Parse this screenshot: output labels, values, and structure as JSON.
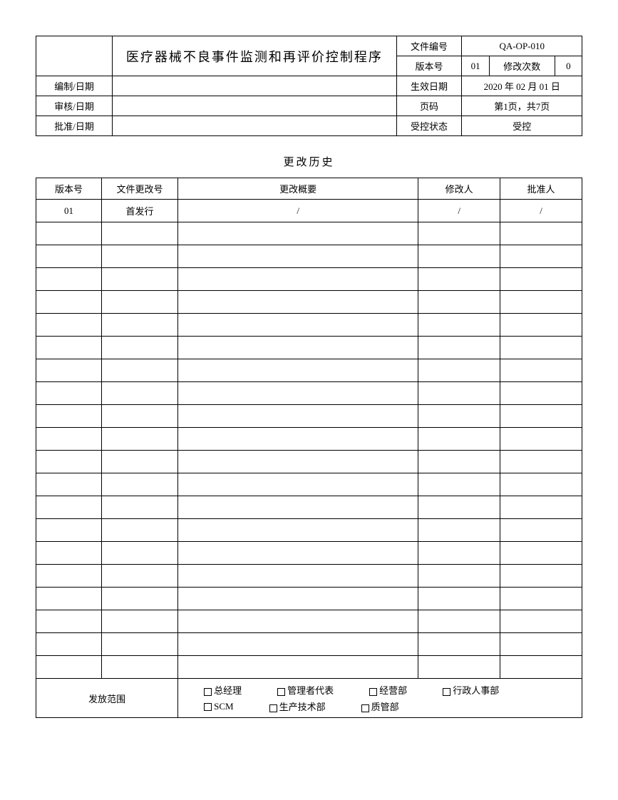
{
  "header": {
    "title": "医疗器械不良事件监测和再评价控制程序",
    "doc_no_label": "文件编号",
    "doc_no": "QA-OP-010",
    "version_label": "版本号",
    "version": "01",
    "rev_count_label": "修改次数",
    "rev_count": "0",
    "prepared_label": "编制/日期",
    "prepared": "",
    "effective_label": "生效日期",
    "effective": "2020 年 02 月 01 日",
    "reviewed_label": "审核/日期",
    "reviewed": "",
    "page_label": "页码",
    "page": "第1页，共7页",
    "approved_label": "批准/日期",
    "approved": "",
    "controlled_label": "受控状态",
    "controlled": "受控"
  },
  "history": {
    "section_title": "更改历史",
    "headers": [
      "版本号",
      "文件更改号",
      "更改概要",
      "修改人",
      "批准人"
    ],
    "rows": [
      [
        "01",
        "首发行",
        "/",
        "/",
        "/"
      ],
      [
        "",
        "",
        "",
        "",
        ""
      ],
      [
        "",
        "",
        "",
        "",
        ""
      ],
      [
        "",
        "",
        "",
        "",
        ""
      ],
      [
        "",
        "",
        "",
        "",
        ""
      ],
      [
        "",
        "",
        "",
        "",
        ""
      ],
      [
        "",
        "",
        "",
        "",
        ""
      ],
      [
        "",
        "",
        "",
        "",
        ""
      ],
      [
        "",
        "",
        "",
        "",
        ""
      ],
      [
        "",
        "",
        "",
        "",
        ""
      ],
      [
        "",
        "",
        "",
        "",
        ""
      ],
      [
        "",
        "",
        "",
        "",
        ""
      ],
      [
        "",
        "",
        "",
        "",
        ""
      ],
      [
        "",
        "",
        "",
        "",
        ""
      ],
      [
        "",
        "",
        "",
        "",
        ""
      ],
      [
        "",
        "",
        "",
        "",
        ""
      ],
      [
        "",
        "",
        "",
        "",
        ""
      ],
      [
        "",
        "",
        "",
        "",
        ""
      ],
      [
        "",
        "",
        "",
        "",
        ""
      ],
      [
        "",
        "",
        "",
        "",
        ""
      ],
      [
        "",
        "",
        "",
        "",
        ""
      ]
    ]
  },
  "distribution": {
    "label": "发放范围",
    "items_row1": [
      "总经理",
      "管理者代表",
      "经营部",
      "行政人事部"
    ],
    "items_row2": [
      "SCM",
      "生产技术部",
      "质管部"
    ]
  },
  "styling": {
    "page_bg": "#ffffff",
    "border_color": "#000000",
    "text_color": "#000000",
    "col_widths_history_pct": [
      12,
      14,
      44,
      15,
      15
    ]
  }
}
